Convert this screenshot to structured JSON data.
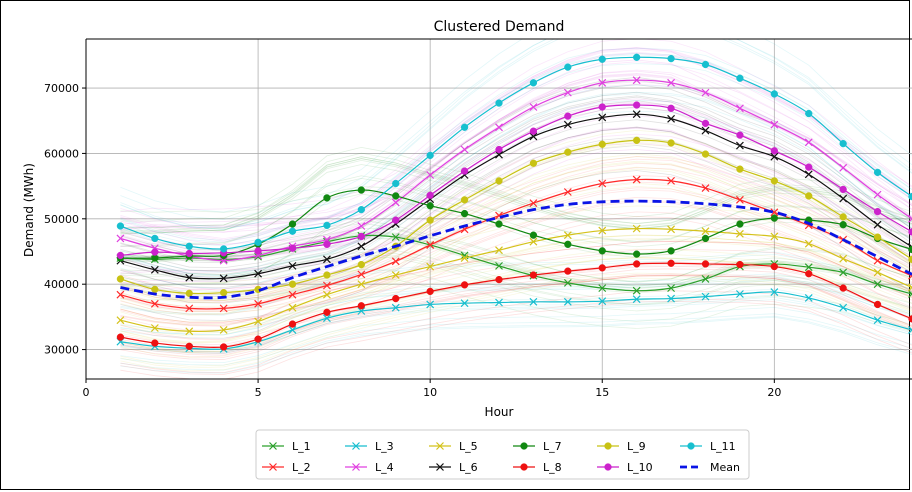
{
  "chart_data": {
    "type": "line",
    "title": "Clustered Demand",
    "xlabel": "Hour",
    "ylabel": "Demand (MWh)",
    "xlim": [
      0,
      24
    ],
    "ylim": [
      25500,
      77500
    ],
    "xticks": [
      0,
      5,
      10,
      15,
      20
    ],
    "yticks": [
      30000,
      40000,
      50000,
      60000,
      70000
    ],
    "grid": true,
    "legend_position": "bottom-center",
    "x": [
      1,
      2,
      3,
      4,
      5,
      6,
      7,
      8,
      9,
      10,
      11,
      12,
      13,
      14,
      15,
      16,
      17,
      18,
      19,
      20,
      21,
      22,
      23,
      24
    ],
    "series": [
      {
        "name": "L_1",
        "color": "#2ca02c",
        "marker": "x",
        "values": [
          44000,
          43800,
          44000,
          43800,
          44200,
          45400,
          46500,
          47400,
          47200,
          46000,
          44400,
          42800,
          41300,
          40200,
          39400,
          39000,
          39400,
          40800,
          42700,
          43100,
          42600,
          41800,
          40000,
          38500
        ]
      },
      {
        "name": "L_2",
        "color": "#ff2a2a",
        "marker": "x",
        "values": [
          38400,
          37000,
          36300,
          36300,
          37000,
          38400,
          39800,
          41500,
          43500,
          46000,
          48400,
          50500,
          52400,
          54100,
          55400,
          56000,
          55800,
          54700,
          52900,
          51000,
          49000,
          46800,
          43600,
          41300
        ]
      },
      {
        "name": "L_3",
        "color": "#17becf",
        "marker": "x",
        "values": [
          31200,
          30500,
          30200,
          30100,
          31200,
          33000,
          34800,
          35900,
          36400,
          36900,
          37100,
          37200,
          37300,
          37300,
          37400,
          37700,
          37800,
          38100,
          38500,
          38800,
          37900,
          36400,
          34500,
          33000
        ]
      },
      {
        "name": "L_4",
        "color": "#e040e0",
        "marker": "x",
        "values": [
          47000,
          45500,
          44300,
          43600,
          44400,
          45800,
          46800,
          48900,
          52500,
          56700,
          60600,
          64000,
          67100,
          69300,
          70800,
          71200,
          70800,
          69300,
          66900,
          64400,
          61700,
          57800,
          53700,
          50000
        ]
      },
      {
        "name": "L_5",
        "color": "#d4c21a",
        "marker": "x",
        "values": [
          34500,
          33300,
          32800,
          33000,
          34300,
          36400,
          38400,
          40000,
          41400,
          42700,
          44000,
          45200,
          46500,
          47500,
          48200,
          48500,
          48400,
          48100,
          47700,
          47300,
          46200,
          43900,
          41800,
          39500
        ]
      },
      {
        "name": "L_6",
        "color": "#111111",
        "marker": "x",
        "values": [
          43600,
          42200,
          41000,
          40900,
          41600,
          42800,
          43800,
          45800,
          49200,
          53000,
          56700,
          59800,
          62600,
          64400,
          65500,
          66000,
          65300,
          63500,
          61200,
          59500,
          56800,
          53100,
          49100,
          45700
        ]
      },
      {
        "name": "L_7",
        "color": "#118811",
        "marker": "o",
        "values": [
          44000,
          44000,
          44300,
          44400,
          46100,
          49200,
          53200,
          54400,
          53500,
          52000,
          50800,
          49200,
          47500,
          46100,
          45100,
          44600,
          45100,
          47000,
          49200,
          50100,
          49800,
          49100,
          47000,
          45300
        ]
      },
      {
        "name": "L_8",
        "color": "#ee1111",
        "marker": "o",
        "values": [
          31900,
          31000,
          30500,
          30400,
          31600,
          33900,
          35700,
          36700,
          37800,
          38900,
          39900,
          40700,
          41400,
          42000,
          42500,
          43100,
          43200,
          43100,
          43000,
          42700,
          41600,
          39400,
          36900,
          34700
        ]
      },
      {
        "name": "L_9",
        "color": "#c8c214",
        "marker": "o",
        "values": [
          40800,
          39200,
          38600,
          38700,
          39200,
          40000,
          41400,
          43000,
          45800,
          49800,
          52900,
          55800,
          58500,
          60200,
          61400,
          62000,
          61600,
          59900,
          57600,
          55800,
          53500,
          50300,
          47200,
          43800
        ]
      },
      {
        "name": "L_10",
        "color": "#cc22cc",
        "marker": "o",
        "values": [
          44400,
          44900,
          44700,
          44800,
          45100,
          45500,
          46100,
          47300,
          49800,
          53600,
          57300,
          60600,
          63400,
          65700,
          67100,
          67400,
          66900,
          64600,
          62800,
          60400,
          57900,
          54500,
          51100,
          48000
        ]
      },
      {
        "name": "L_11",
        "color": "#17bfcf",
        "marker": "o",
        "values": [
          48900,
          47000,
          45800,
          45400,
          46400,
          48100,
          49000,
          51400,
          55400,
          59700,
          64000,
          67700,
          70800,
          73200,
          74400,
          74700,
          74500,
          73600,
          71500,
          69100,
          66100,
          61500,
          57100,
          53400
        ]
      },
      {
        "name": "Mean",
        "color": "#0a14e6",
        "marker": "none",
        "dashed": true,
        "values": [
          39500,
          38500,
          38000,
          38000,
          39000,
          41000,
          42700,
          44300,
          45800,
          47400,
          48900,
          50200,
          51400,
          52200,
          52600,
          52700,
          52600,
          52300,
          51800,
          51000,
          49300,
          46800,
          44200,
          41500
        ]
      }
    ]
  }
}
